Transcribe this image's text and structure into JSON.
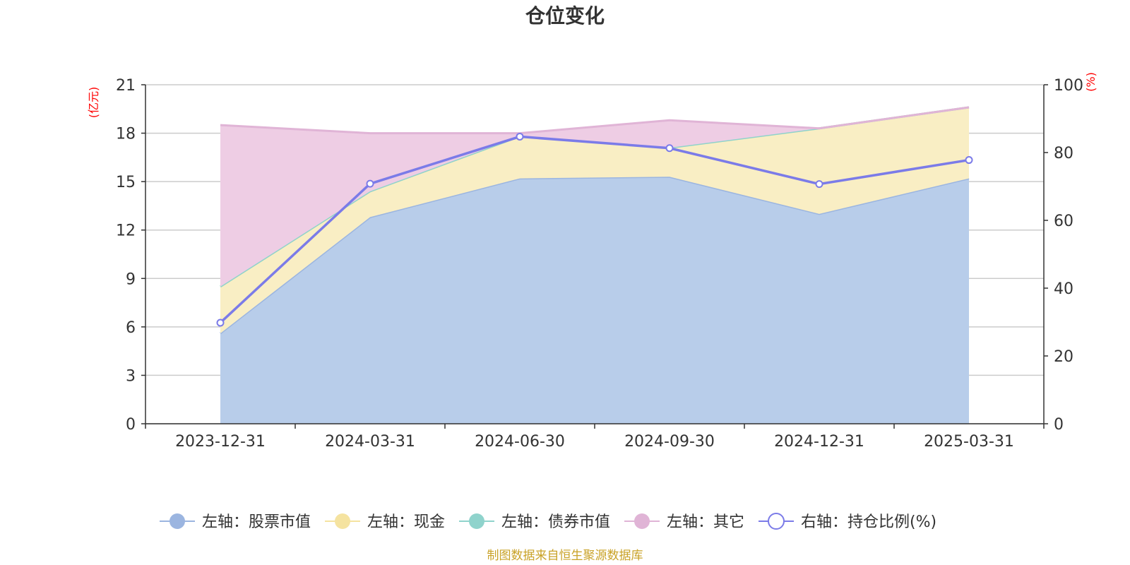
{
  "chart_data": {
    "type": "area",
    "title": "仓位变化",
    "categories": [
      "2023-12-31",
      "2024-03-31",
      "2024-06-30",
      "2024-09-30",
      "2024-12-31",
      "2025-03-31"
    ],
    "left_axis": {
      "unit": "(亿元)",
      "ylim": [
        0,
        21
      ],
      "ticks": [
        "0",
        "3",
        "6",
        "9",
        "12",
        "15",
        "18",
        "21"
      ]
    },
    "right_axis": {
      "unit": "(%)",
      "ylim": [
        0,
        100
      ],
      "ticks": [
        "0",
        "20",
        "40",
        "60",
        "80",
        "100"
      ]
    },
    "series": [
      {
        "name": "左轴：股票市值",
        "axis": "left",
        "type": "area",
        "color": "#9bb5e0",
        "fill": "#b8cdea",
        "values": [
          5.6,
          12.8,
          15.2,
          15.3,
          13.0,
          15.2
        ]
      },
      {
        "name": "左轴：现金",
        "axis": "left",
        "type": "area",
        "color": "#f5e3a0",
        "fill": "#f9eec4",
        "values": [
          2.9,
          1.6,
          2.6,
          1.8,
          5.3,
          4.4
        ]
      },
      {
        "name": "左轴：债券市值",
        "axis": "left",
        "type": "area",
        "color": "#8fd3cc",
        "fill": "#b2e2de",
        "values": [
          0.0,
          0.0,
          0.0,
          0.0,
          0.0,
          0.0
        ]
      },
      {
        "name": "左轴：其它",
        "axis": "left",
        "type": "area",
        "color": "#e0b4d6",
        "fill": "#eecde4",
        "values": [
          10.0,
          3.6,
          0.2,
          1.7,
          0.0,
          0.0
        ]
      },
      {
        "name": "右轴：持仓比例(%)",
        "axis": "right",
        "type": "line",
        "color": "#7b7be8",
        "values": [
          29.8,
          70.8,
          84.7,
          81.3,
          70.7,
          77.8
        ]
      }
    ],
    "grid": true,
    "legend_position": "bottom"
  },
  "footer": {
    "source": "制图数据来自恒生聚源数据库"
  }
}
